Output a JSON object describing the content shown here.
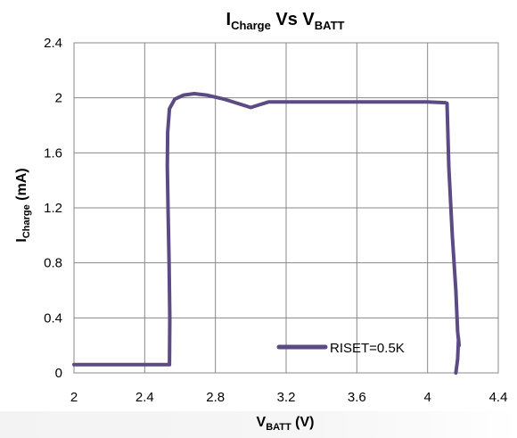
{
  "chart_data": {
    "type": "line",
    "title": {
      "main": "I",
      "main_sub": "Charge",
      "mid": " Vs  V",
      "end_sub": "BATT"
    },
    "xlabel": {
      "main": "V",
      "sub": "BATT",
      "suffix": " (V)"
    },
    "ylabel": {
      "main": "I",
      "sub": "Charge",
      "suffix": " (mA)"
    },
    "xlim": [
      2,
      4.4
    ],
    "ylim": [
      0,
      2.4
    ],
    "x_ticks": [
      "2",
      "2.4",
      "2.8",
      "3.2",
      "3.6",
      "4",
      "4.4"
    ],
    "y_ticks": [
      "0",
      "0.4",
      "0.8",
      "1.2",
      "1.6",
      "2",
      "2.4"
    ],
    "grid": true,
    "legend_position": "bottom-right",
    "series": [
      {
        "name": "RISET=0.5K",
        "color": "#5b4a84",
        "points": [
          [
            2.0,
            0.06
          ],
          [
            2.53,
            0.06
          ],
          [
            2.54,
            0.06
          ],
          [
            2.542,
            0.4
          ],
          [
            2.538,
            0.8
          ],
          [
            2.532,
            1.2
          ],
          [
            2.528,
            1.5
          ],
          [
            2.53,
            1.75
          ],
          [
            2.54,
            1.92
          ],
          [
            2.57,
            1.99
          ],
          [
            2.62,
            2.02
          ],
          [
            2.68,
            2.03
          ],
          [
            2.75,
            2.02
          ],
          [
            2.85,
            1.99
          ],
          [
            2.95,
            1.95
          ],
          [
            3.0,
            1.93
          ],
          [
            3.05,
            1.95
          ],
          [
            3.1,
            1.97
          ],
          [
            3.2,
            1.97
          ],
          [
            3.4,
            1.97
          ],
          [
            3.6,
            1.97
          ],
          [
            3.8,
            1.97
          ],
          [
            4.0,
            1.97
          ],
          [
            4.1,
            1.965
          ],
          [
            4.11,
            1.96
          ],
          [
            4.12,
            1.5
          ],
          [
            4.14,
            1.0
          ],
          [
            4.16,
            0.6
          ],
          [
            4.17,
            0.3
          ],
          [
            4.178,
            0.2
          ],
          [
            4.175,
            0.25
          ],
          [
            4.17,
            0.1
          ],
          [
            4.16,
            0.0
          ]
        ]
      }
    ]
  }
}
